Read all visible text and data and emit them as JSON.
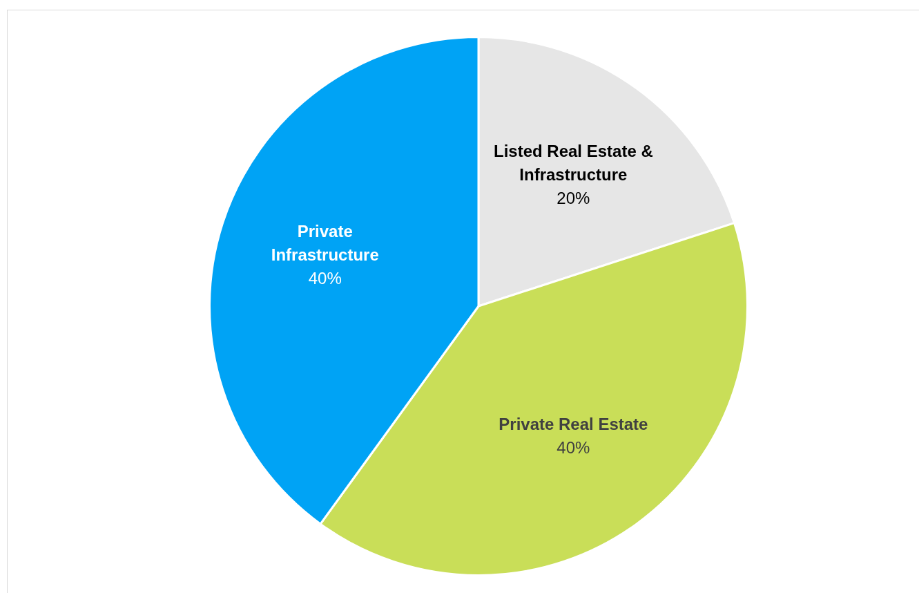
{
  "chart_data": {
    "type": "pie",
    "categories": [
      "Listed Real Estate & Infrastructure",
      "Private Real Estate",
      "Private Infrastructure"
    ],
    "values": [
      20,
      40,
      40
    ],
    "colors": [
      "#e6e6e6",
      "#c9de58",
      "#00a3f5"
    ],
    "value_labels": [
      "20%",
      "40%",
      "40%"
    ],
    "legend": false
  }
}
